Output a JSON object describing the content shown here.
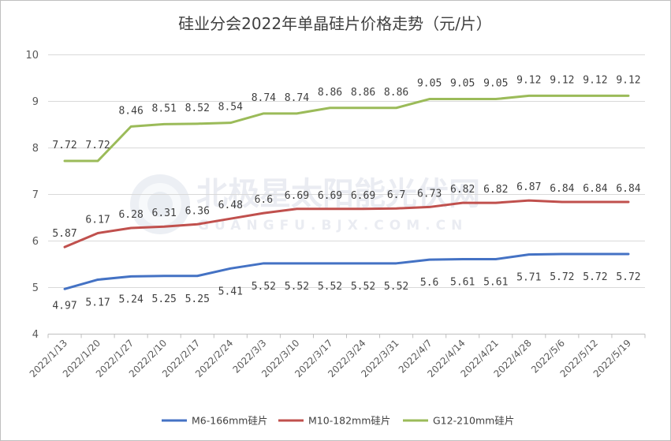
{
  "chart_data": {
    "type": "line",
    "title": "硅业分会2022年单晶硅片价格走势（元/片）",
    "xlabel": "",
    "ylabel": "",
    "ylim": [
      4,
      10
    ],
    "yticks": [
      "4",
      "5",
      "6",
      "7",
      "8",
      "9",
      "10"
    ],
    "grid": true,
    "legend_position": "bottom",
    "categories": [
      "2022/1/13",
      "2022/1/20",
      "2022/1/27",
      "2022/2/10",
      "2022/2/17",
      "2022/2/24",
      "2022/3/3",
      "2022/3/10",
      "2022/3/17",
      "2022/3/24",
      "2022/3/31",
      "2022/4/7",
      "2022/4/14",
      "2022/4/21",
      "2022/4/28",
      "2022/5/6",
      "2022/5/12",
      "2022/5/19"
    ],
    "series": [
      {
        "name": "M6-166mm硅片",
        "color": "#4472c4",
        "values": [
          4.97,
          5.17,
          5.24,
          5.25,
          5.25,
          5.41,
          5.52,
          5.52,
          5.52,
          5.52,
          5.52,
          5.6,
          5.61,
          5.61,
          5.71,
          5.72,
          5.72,
          5.72
        ],
        "labels": [
          "4.97",
          "5.17",
          "5.24",
          "5.25",
          "5.25",
          "5.41",
          "5.52",
          "5.52",
          "5.52",
          "5.52",
          "5.52",
          "5.6",
          "5.61",
          "5.61",
          "5.71",
          "5.72",
          "5.72",
          "5.72"
        ]
      },
      {
        "name": "M10-182mm硅片",
        "color": "#c0504d",
        "values": [
          5.87,
          6.17,
          6.28,
          6.31,
          6.36,
          6.48,
          6.6,
          6.69,
          6.69,
          6.69,
          6.7,
          6.73,
          6.82,
          6.82,
          6.87,
          6.84,
          6.84,
          6.84
        ],
        "labels": [
          "5.87",
          "6.17",
          "6.28",
          "6.31",
          "6.36",
          "6.48",
          "6.6",
          "6.69",
          "6.69",
          "6.69",
          "6.7",
          "6.73",
          "6.82",
          "6.82",
          "6.87",
          "6.84",
          "6.84",
          "6.84"
        ]
      },
      {
        "name": "G12-210mm硅片",
        "color": "#9bbb59",
        "values": [
          7.72,
          7.72,
          8.46,
          8.51,
          8.52,
          8.54,
          8.74,
          8.74,
          8.86,
          8.86,
          8.86,
          9.05,
          9.05,
          9.05,
          9.12,
          9.12,
          9.12,
          9.12
        ],
        "labels": [
          "7.72",
          "7.72",
          "8.46",
          "8.51",
          "8.52",
          "8.54",
          "8.74",
          "8.74",
          "8.86",
          "8.86",
          "8.86",
          "9.05",
          "9.05",
          "9.05",
          "9.12",
          "9.12",
          "9.12",
          "9.12"
        ]
      }
    ]
  },
  "watermark": {
    "main": "北极星太阳能光伏网",
    "sub": "GUANGFU.BJX.COM.CN"
  }
}
